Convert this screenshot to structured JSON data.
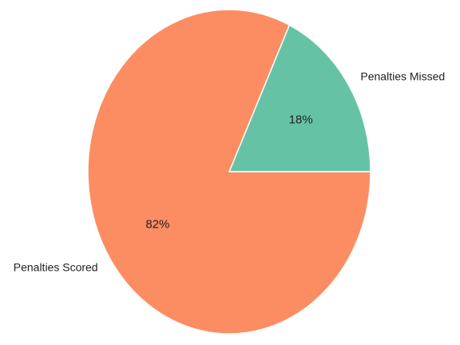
{
  "chart_data": {
    "type": "pie",
    "title": "",
    "slices": [
      {
        "label": "Penalties Missed",
        "value": 18,
        "pct_label": "18%",
        "color": "#66c2a5"
      },
      {
        "label": "Penalties Scored",
        "value": 82,
        "pct_label": "82%",
        "color": "#fc8d62"
      }
    ],
    "start_angle_deg": 0,
    "direction": "counterclockwise",
    "slice_edge_color": "#ffffff"
  }
}
